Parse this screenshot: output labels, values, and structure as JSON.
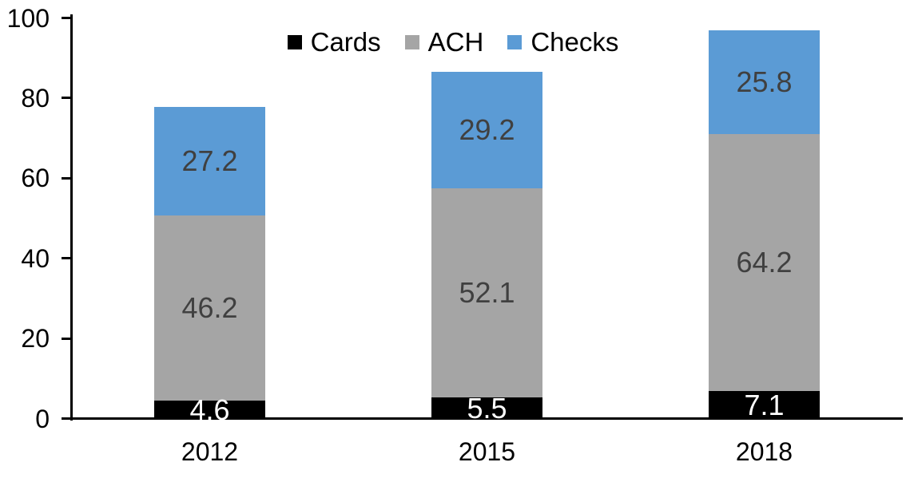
{
  "chart_data": {
    "type": "bar",
    "subtype": "stacked-column",
    "title": "",
    "xlabel": "",
    "ylabel": "",
    "categories": [
      "2012",
      "2015",
      "2018"
    ],
    "series": [
      {
        "name": "Cards",
        "color": "#000000",
        "label_color": "#ffffff",
        "values": [
          4.6,
          5.5,
          7.1
        ]
      },
      {
        "name": "ACH",
        "color": "#a5a5a5",
        "label_color": "#404040",
        "values": [
          46.2,
          52.1,
          64.2
        ]
      },
      {
        "name": "Checks",
        "color": "#5b9bd5",
        "label_color": "#404040",
        "values": [
          27.2,
          29.2,
          25.8
        ]
      }
    ],
    "y_axis": {
      "min": 0,
      "max": 100,
      "tick_interval": 20,
      "ticks": [
        0,
        20,
        40,
        60,
        80,
        100
      ]
    },
    "legend": {
      "position": "top-center"
    },
    "grid": false,
    "axis_color": "#000000"
  }
}
